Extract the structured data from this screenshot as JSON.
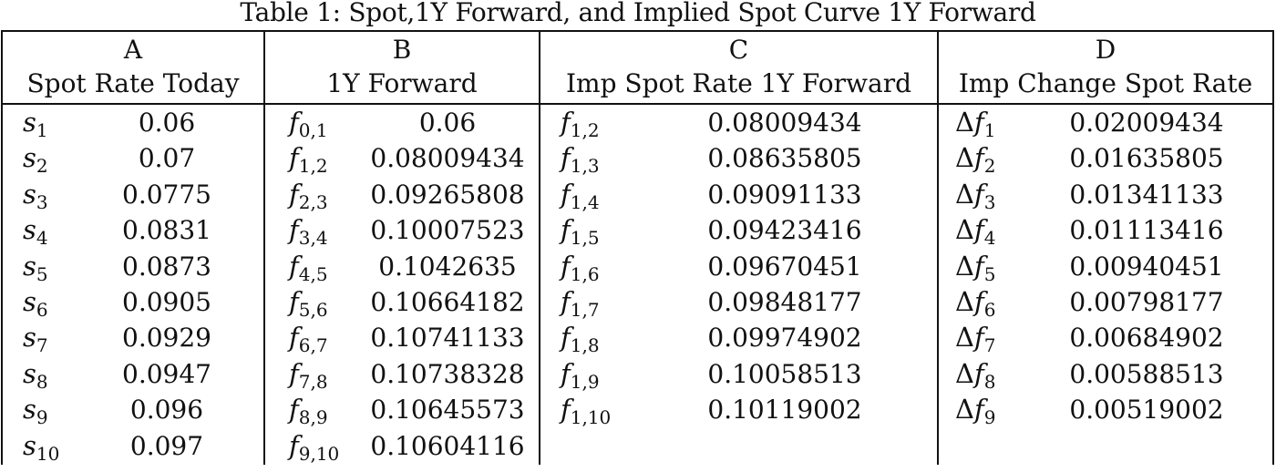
{
  "caption": "Table 1: Spot,1Y Forward, and Implied Spot Curve 1Y Forward",
  "columns": [
    {
      "letter": "A",
      "title": "Spot Rate Today",
      "rows": [
        {
          "symbol": "s",
          "sub": "1",
          "delta": false,
          "value": "0.06"
        },
        {
          "symbol": "s",
          "sub": "2",
          "delta": false,
          "value": "0.07"
        },
        {
          "symbol": "s",
          "sub": "3",
          "delta": false,
          "value": "0.0775"
        },
        {
          "symbol": "s",
          "sub": "4",
          "delta": false,
          "value": "0.0831"
        },
        {
          "symbol": "s",
          "sub": "5",
          "delta": false,
          "value": "0.0873"
        },
        {
          "symbol": "s",
          "sub": "6",
          "delta": false,
          "value": "0.0905"
        },
        {
          "symbol": "s",
          "sub": "7",
          "delta": false,
          "value": "0.0929"
        },
        {
          "symbol": "s",
          "sub": "8",
          "delta": false,
          "value": "0.0947"
        },
        {
          "symbol": "s",
          "sub": "9",
          "delta": false,
          "value": "0.096"
        },
        {
          "symbol": "s",
          "sub": "10",
          "delta": false,
          "value": "0.097"
        }
      ]
    },
    {
      "letter": "B",
      "title": "1Y Forward",
      "rows": [
        {
          "symbol": "f",
          "sub": "0,1",
          "delta": false,
          "value": "0.06"
        },
        {
          "symbol": "f",
          "sub": "1,2",
          "delta": false,
          "value": "0.08009434"
        },
        {
          "symbol": "f",
          "sub": "2,3",
          "delta": false,
          "value": "0.09265808"
        },
        {
          "symbol": "f",
          "sub": "3,4",
          "delta": false,
          "value": "0.10007523"
        },
        {
          "symbol": "f",
          "sub": "4,5",
          "delta": false,
          "value": "0.1042635"
        },
        {
          "symbol": "f",
          "sub": "5,6",
          "delta": false,
          "value": "0.10664182"
        },
        {
          "symbol": "f",
          "sub": "6,7",
          "delta": false,
          "value": "0.10741133"
        },
        {
          "symbol": "f",
          "sub": "7,8",
          "delta": false,
          "value": "0.10738328"
        },
        {
          "symbol": "f",
          "sub": "8,9",
          "delta": false,
          "value": "0.10645573"
        },
        {
          "symbol": "f",
          "sub": "9,10",
          "delta": false,
          "value": "0.10604116"
        }
      ]
    },
    {
      "letter": "C",
      "title": "Imp Spot Rate 1Y Forward",
      "rows": [
        {
          "symbol": "f",
          "sub": "1,2",
          "delta": false,
          "value": "0.08009434"
        },
        {
          "symbol": "f",
          "sub": "1,3",
          "delta": false,
          "value": "0.08635805"
        },
        {
          "symbol": "f",
          "sub": "1,4",
          "delta": false,
          "value": "0.09091133"
        },
        {
          "symbol": "f",
          "sub": "1,5",
          "delta": false,
          "value": "0.09423416"
        },
        {
          "symbol": "f",
          "sub": "1,6",
          "delta": false,
          "value": "0.09670451"
        },
        {
          "symbol": "f",
          "sub": "1,7",
          "delta": false,
          "value": "0.09848177"
        },
        {
          "symbol": "f",
          "sub": "1,8",
          "delta": false,
          "value": "0.09974902"
        },
        {
          "symbol": "f",
          "sub": "1,9",
          "delta": false,
          "value": "0.10058513"
        },
        {
          "symbol": "f",
          "sub": "1,10",
          "delta": false,
          "value": "0.10119002"
        }
      ]
    },
    {
      "letter": "D",
      "title": "Imp Change Spot Rate",
      "rows": [
        {
          "symbol": "f",
          "sub": "1",
          "delta": true,
          "value": "0.02009434"
        },
        {
          "symbol": "f",
          "sub": "2",
          "delta": true,
          "value": "0.01635805"
        },
        {
          "symbol": "f",
          "sub": "3",
          "delta": true,
          "value": "0.01341133"
        },
        {
          "symbol": "f",
          "sub": "4",
          "delta": true,
          "value": "0.01113416"
        },
        {
          "symbol": "f",
          "sub": "5",
          "delta": true,
          "value": "0.00940451"
        },
        {
          "symbol": "f",
          "sub": "6",
          "delta": true,
          "value": "0.00798177"
        },
        {
          "symbol": "f",
          "sub": "7",
          "delta": true,
          "value": "0.00684902"
        },
        {
          "symbol": "f",
          "sub": "8",
          "delta": true,
          "value": "0.00588513"
        },
        {
          "symbol": "f",
          "sub": "9",
          "delta": true,
          "value": "0.00519002"
        }
      ]
    }
  ]
}
